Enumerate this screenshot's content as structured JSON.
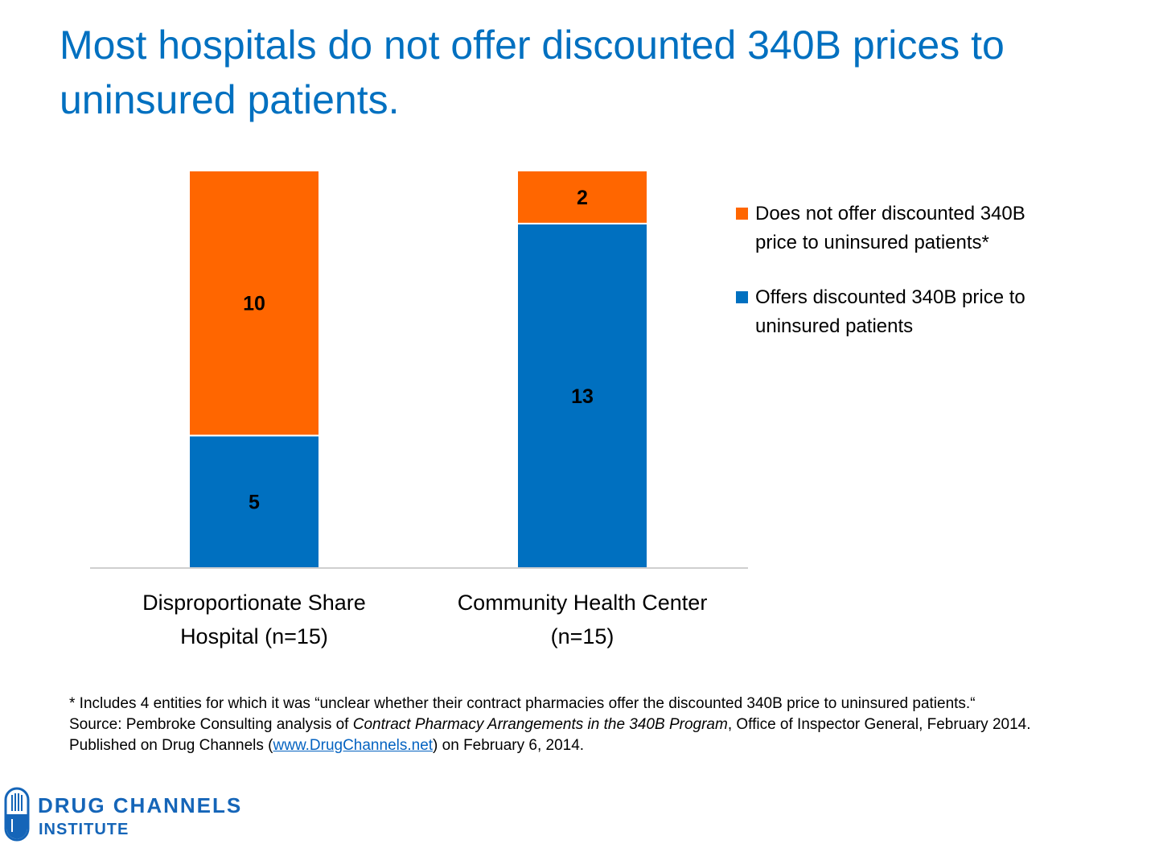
{
  "title": "Most hospitals do not offer discounted 340B prices to uninsured patients.",
  "chart_data": {
    "type": "bar",
    "stacked": true,
    "categories": [
      [
        "Disproportionate Share",
        "Hospital (n=15)"
      ],
      [
        "Community Health Center",
        "(n=15)"
      ]
    ],
    "series": [
      {
        "name": "Offers discounted 340B price to uninsured patients",
        "values": [
          5,
          13
        ],
        "color": "#0070c0"
      },
      {
        "name": "Does not offer discounted 340B price to uninsured patients*",
        "values": [
          10,
          2
        ],
        "color": "#ff6600"
      }
    ],
    "ylim": [
      0,
      15
    ],
    "grid": false,
    "data_labels": true,
    "legend_position": "right"
  },
  "legend": {
    "items": [
      {
        "line1": "Does not offer discounted 340B",
        "line2": "price to uninsured patients*",
        "color": "#ff6600"
      },
      {
        "line1": "Offers discounted 340B price to",
        "line2": "uninsured patients",
        "color": "#0070c0"
      }
    ]
  },
  "footnote": {
    "line1": "* Includes 4 entities for which it was “unclear whether their contract pharmacies offer the discounted 340B price to uninsured patients.“",
    "source_prefix": "Source: Pembroke Consulting analysis of ",
    "source_title": "Contract Pharmacy Arrangements in the 340B Program",
    "source_suffix": ", Office of Inspector General, February 2014.",
    "published_prefix": "Published on Drug Channels (",
    "published_link": "www.DrugChannels.net",
    "published_suffix": ") on February 6, 2014."
  },
  "logo": {
    "line1": "DRUG CHANNELS",
    "line2": "INSTITUTE",
    "color": "#1565b8"
  }
}
